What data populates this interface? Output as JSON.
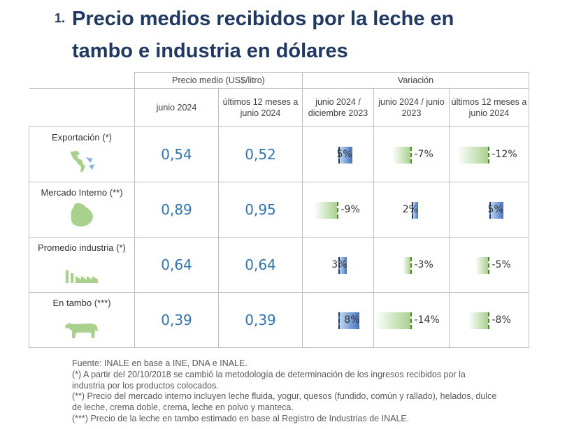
{
  "title": {
    "number": "1.",
    "text": "Precio medios recibidos por la leche en tambo e industria en dólares"
  },
  "table": {
    "group_headers": {
      "price": "Precio medio (US$/litro)",
      "variation": "Variación"
    },
    "sub_headers": {
      "price_current": "junio 2024",
      "price_12m": "últimos 12 meses a junio 2024",
      "var_dec": "junio 2024 / diciembre 2023",
      "var_yoy": "junio 2024 / junio 2023",
      "var_12m": "últimos 12 meses a junio 2024"
    },
    "rows": [
      {
        "label": "Exportación (*)",
        "icon": "americas-map-icon",
        "price_current": "0,54",
        "price_12m": "0,52",
        "var_dec": "5%",
        "var_yoy": "-7%",
        "var_12m": "-12%",
        "values": [
          5,
          -7,
          -12
        ]
      },
      {
        "label": "Mercado Interno (**)",
        "icon": "uruguay-map-icon",
        "price_current": "0,89",
        "price_12m": "0,95",
        "var_dec": "-9%",
        "var_yoy": "2%",
        "var_12m": "5%",
        "values": [
          -9,
          2,
          5
        ]
      },
      {
        "label": "Promedio industria (*)",
        "icon": "factory-icon",
        "price_current": "0,64",
        "price_12m": "0,64",
        "var_dec": "3%",
        "var_yoy": "-3%",
        "var_12m": "-5%",
        "values": [
          3,
          -3,
          -5
        ]
      },
      {
        "label": "En tambo (***)",
        "icon": "cow-icon",
        "price_current": "0,39",
        "price_12m": "0,39",
        "var_dec": "8%",
        "var_yoy": "-14%",
        "var_12m": "-8%",
        "values": [
          8,
          -14,
          -8
        ]
      }
    ]
  },
  "colors": {
    "title": "#1f3864",
    "price": "#2e75b6",
    "positive_bar": "#4472c4",
    "negative_bar": "#a9d18e",
    "icon": "#a9d18e"
  },
  "footer": {
    "source": "Fuente: INALE en base a INE, DNA e INALE.",
    "note1": "(*) A partir del 20/10/2018 se cambió la metodología de determinación de los ingresos recibidos por la industria por los productos colocados.",
    "note2": "(**) Precio del mercado interno incluyen leche fluida, yogur, quesos (fundido, común y rallado), helados, dulce de leche, crema doble, crema, leche en polvo y manteca.",
    "note3": "(***) Precio de la leche en tambo estimado en base al Registro de Industrias de INALE."
  }
}
